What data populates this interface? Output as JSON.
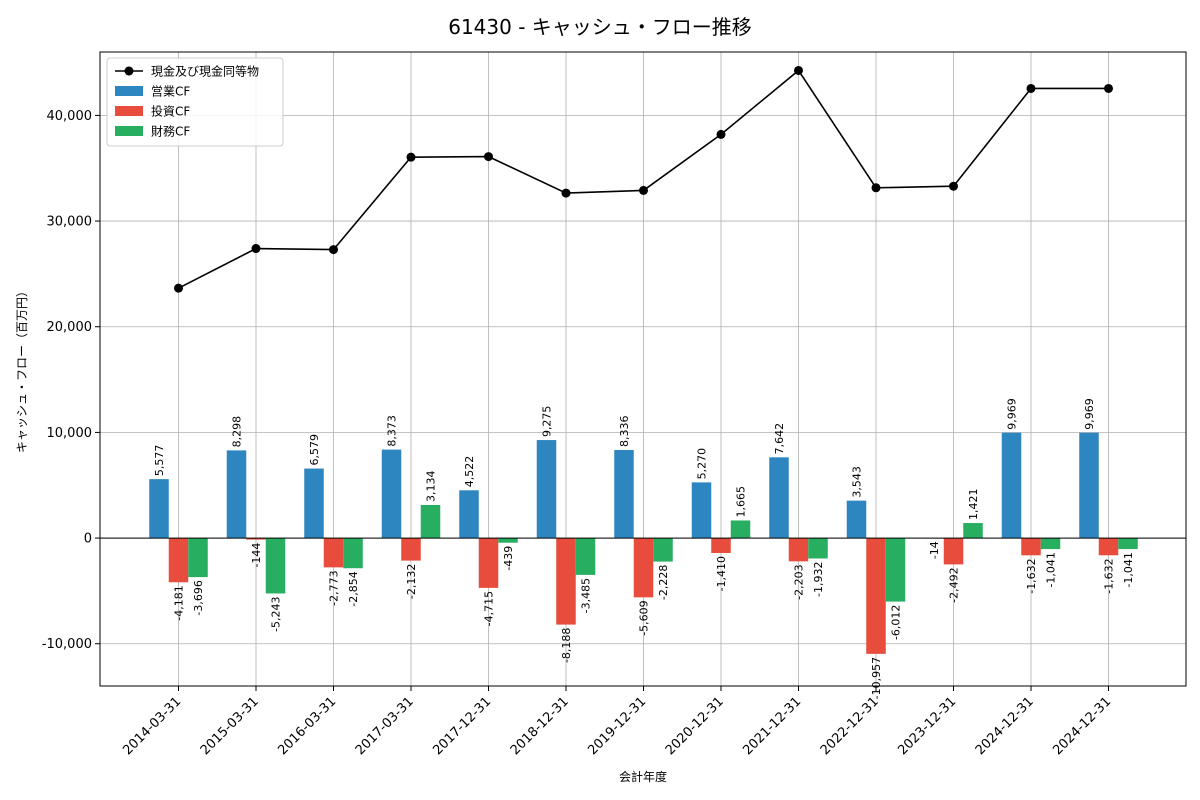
{
  "chart_data": {
    "type": "bar",
    "title": "61430 - キャッシュ・フロー推移",
    "xlabel": "会計年度",
    "ylabel": "キャッシュ・フロー（百万円）",
    "ylim": [
      -14000,
      46000
    ],
    "yticks": [
      -10000,
      0,
      10000,
      20000,
      30000,
      40000
    ],
    "ytick_labels": [
      "-10,000",
      "0",
      "10,000",
      "20,000",
      "30,000",
      "40,000"
    ],
    "grid": true,
    "legend_position": "top-left",
    "categories": [
      "2014-03-31",
      "2015-03-31",
      "2016-03-31",
      "2017-03-31",
      "2017-12-31",
      "2018-12-31",
      "2019-12-31",
      "2020-12-31",
      "2021-12-31",
      "2022-12-31",
      "2023-12-31",
      "2024-12-31",
      "2024-12-31"
    ],
    "series": [
      {
        "name": "営業CF",
        "kind": "bar",
        "color": "#2e86c1",
        "values": [
          5577,
          8298,
          6579,
          8373,
          4522,
          9275,
          8336,
          5270,
          7642,
          3543,
          -14,
          9969,
          9969
        ],
        "labels": [
          "5,577",
          "8,298",
          "6,579",
          "8,373",
          "4,522",
          "9,275",
          "8,336",
          "5,270",
          "7,642",
          "3,543",
          "-14",
          "9,969",
          "9,969"
        ]
      },
      {
        "name": "投資CF",
        "kind": "bar",
        "color": "#e74c3c",
        "values": [
          -4181,
          -144,
          -2773,
          -2132,
          -4715,
          -8188,
          -5609,
          -1410,
          -2203,
          -10957,
          -2492,
          -1632,
          -1632
        ],
        "labels": [
          "-4,181",
          "-144",
          "-2,773",
          "-2,132",
          "-4,715",
          "-8,188",
          "-5,609",
          "-1,410",
          "-2,203",
          "-10,957",
          "-2,492",
          "-1,632",
          "-1,632"
        ]
      },
      {
        "name": "財務CF",
        "kind": "bar",
        "color": "#27ae60",
        "values": [
          -3696,
          -5243,
          -2854,
          3134,
          -439,
          -3485,
          -2228,
          1665,
          -1932,
          -6012,
          1421,
          -1041,
          -1041
        ],
        "labels": [
          "-3,696",
          "-5,243",
          "-2,854",
          "3,134",
          "-439",
          "-3,485",
          "-2,228",
          "1,665",
          "-1,932",
          "-6,012",
          "1,421",
          "-1,041",
          "-1,041"
        ]
      },
      {
        "name": "現金及び現金同等物",
        "kind": "line",
        "color": "#000000",
        "values": [
          23650,
          27400,
          27300,
          36050,
          36100,
          32650,
          32900,
          38200,
          44250,
          33150,
          33300,
          42550,
          42550
        ]
      }
    ]
  }
}
